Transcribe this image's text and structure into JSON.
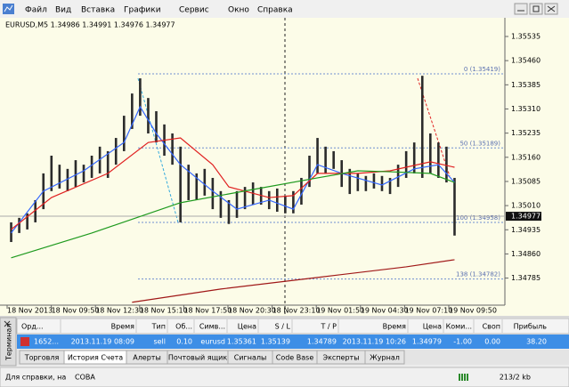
{
  "menu": [
    "Файл",
    "Вид",
    "Вставка",
    "Графики",
    "Сервис",
    "Окно",
    "Справка"
  ],
  "chart_data": {
    "type": "ohlc",
    "title": "EURUSD,M5  1.34986 1.34991 1.34976 1.34977",
    "color": "#2b2b2b",
    "background": "#fcfce8",
    "high": [
      1.34958,
      1.34972,
      1.34986,
      1.35027,
      1.3511,
      1.35165,
      1.35137,
      1.35124,
      1.35151,
      1.35137,
      1.35165,
      1.35193,
      1.35179,
      1.3522,
      1.35289,
      1.35358,
      1.35405,
      1.35344,
      1.35303,
      1.35262,
      1.35234,
      1.35193,
      1.35137,
      1.3511,
      1.35124,
      1.35096,
      1.35055,
      1.35027,
      1.35055,
      1.35068,
      1.35082,
      1.35068,
      1.35055,
      1.35063,
      1.35041,
      1.35055,
      1.35096,
      1.35165,
      1.3522,
      1.35193,
      1.35179,
      1.35151,
      1.35124,
      1.3511,
      1.35102,
      1.3511,
      1.35102,
      1.35096,
      1.35137,
      1.35179,
      1.35206,
      1.35413,
      1.35234,
      1.35206,
      1.35193,
      1.35096
    ],
    "low": [
      1.34897,
      1.34925,
      1.34936,
      1.34958,
      1.34999,
      1.35055,
      1.35063,
      1.35055,
      1.35068,
      1.35082,
      1.35096,
      1.3511,
      1.35096,
      1.35137,
      1.35179,
      1.35248,
      1.35289,
      1.35234,
      1.35206,
      1.35165,
      1.35137,
      1.34958,
      1.35027,
      1.35027,
      1.35041,
      1.34999,
      1.34972,
      1.34953,
      1.34972,
      1.34999,
      1.35013,
      1.35013,
      1.34999,
      1.34991,
      1.34986,
      1.34986,
      1.35013,
      1.35068,
      1.3511,
      1.3511,
      1.35124,
      1.35068,
      1.35046,
      1.35055,
      1.35055,
      1.35063,
      1.35055,
      1.35046,
      1.35068,
      1.35096,
      1.3511,
      1.35096,
      1.3511,
      1.35096,
      1.35082,
      1.34917
    ],
    "indicators": [
      {
        "color": "#3366ff",
        "x": [
          0,
          4,
          9,
          14,
          16,
          18,
          21,
          25,
          28,
          32,
          35,
          38,
          41,
          46,
          50,
          53,
          55
        ],
        "values": [
          1.34925,
          1.35055,
          1.35118,
          1.35206,
          1.35317,
          1.35234,
          1.35137,
          1.35055,
          1.34999,
          1.35027,
          1.34999,
          1.35137,
          1.3511,
          1.35074,
          1.35124,
          1.35137,
          1.35082
        ]
      },
      {
        "color": "#e02020",
        "x": [
          0,
          5,
          12,
          17,
          21,
          25,
          27,
          32,
          35,
          38,
          43,
          47,
          52,
          55
        ],
        "values": [
          1.34936,
          1.35035,
          1.3511,
          1.35206,
          1.3522,
          1.35137,
          1.35068,
          1.35035,
          1.35041,
          1.3511,
          1.3511,
          1.35118,
          1.35146,
          1.35129
        ]
      },
      {
        "color": "#1e9a1e",
        "x": [
          0,
          10,
          21,
          30,
          38,
          43,
          47,
          52,
          55
        ],
        "values": [
          1.34848,
          1.34925,
          1.35019,
          1.3506,
          1.35096,
          1.35118,
          1.35115,
          1.3511,
          1.35082
        ]
      },
      {
        "color": "#a01818",
        "x": [
          15,
          26,
          38,
          49,
          55
        ],
        "values": [
          1.3471,
          1.34751,
          1.34787,
          1.3482,
          1.34842
        ]
      }
    ],
    "levels": [
      {
        "value": 1.35419,
        "label": "0 (1.35419)"
      },
      {
        "value": 1.35189,
        "label": "50 (1.35189)"
      },
      {
        "value": 1.34958,
        "label": "100 (1.34958)"
      },
      {
        "value": 1.34782,
        "label": "138 (1.34782)"
      }
    ],
    "last_price": 1.34977,
    "ylim": [
      1.34701,
      1.35593
    ],
    "yticks": [
      1.35535,
      {
        "value": 1.3546,
        "label": "1.35460"
      },
      1.35385,
      {
        "value": 1.3531,
        "label": "1.35310"
      },
      1.35235,
      {
        "value": 1.3516,
        "label": "1.35160"
      },
      1.35085,
      {
        "value": 1.3501,
        "label": "1.35010"
      },
      1.34935,
      {
        "value": 1.3486,
        "label": "1.34860"
      },
      1.34785
    ],
    "time_labels": [
      "18 Nov 2013",
      "18 Nov 09:50",
      "18 Nov 12:30",
      "18 Nov 15:10",
      "18 Nov 17:50",
      "18 Nov 20:30",
      "18 Nov 23:10",
      "19 Nov 01:50",
      "19 Nov 04:30",
      "19 Nov 07:10",
      "19 Nov 09:50"
    ]
  },
  "terminal": {
    "side_label": "Терминал",
    "columns": [
      "Орд...",
      "Время",
      "Тип",
      "Об...",
      "Симв...",
      "Цена",
      "S / L",
      "T / P",
      "Время",
      "Цена",
      "Коми...",
      "Своп",
      "Прибыль"
    ],
    "row": [
      "1652...",
      "2013.11.19 08:09",
      "sell",
      "0.10",
      "eurusd",
      "1.35361",
      "1.35139",
      "1.34789",
      "2013.11.19 10:26",
      "1.34979",
      "-1.00",
      "0.00",
      "38.20"
    ],
    "tabs": [
      "Торговля",
      "История Счета",
      "Алерты",
      "Почтовый ящик",
      "Сигналы",
      "Code Base",
      "Эксперты",
      "Журнал"
    ],
    "active_tab": 1
  },
  "status": {
    "help": "Для справки, на",
    "profile": "СОВА",
    "traffic": "213/2 kb"
  }
}
